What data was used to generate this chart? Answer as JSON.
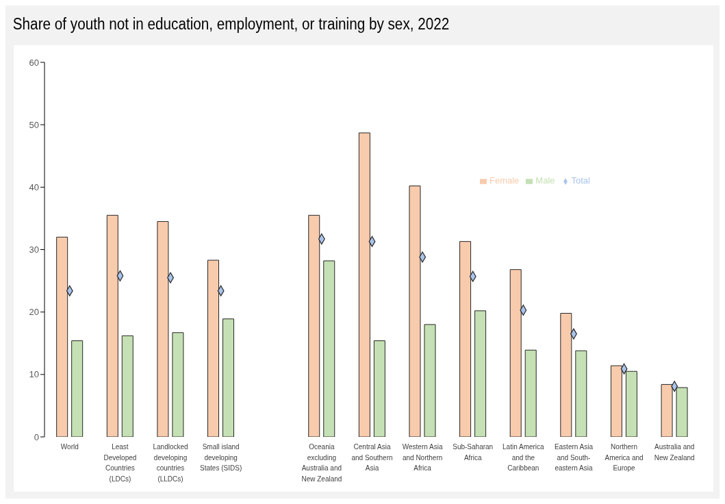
{
  "chart_data": {
    "type": "bar",
    "title": "Share of youth not in education, employment, or training by sex, 2022",
    "categories": [
      "World",
      "Least Developed Countries (LDCs)",
      "Landlocked developing countries (LLDCs)",
      "Small island developing States (SIDS)",
      null,
      "Oceania excluding Australia and New Zealand",
      "Central Asia and Southern Asia",
      "Western Asia and Northern Africa",
      "Sub-Saharan Africa",
      "Latin America and the Caribbean",
      "Eastern Asia and South-eastern Asia",
      "Northern America and Europe",
      "Australia and New Zealand"
    ],
    "series": [
      {
        "name": "Female",
        "color": "#f8cbad",
        "values": [
          32.0,
          35.5,
          34.5,
          28.3,
          null,
          35.5,
          48.7,
          40.2,
          31.3,
          26.8,
          19.8,
          11.4,
          8.4
        ]
      },
      {
        "name": "Male",
        "color": "#c5e0b4",
        "values": [
          15.4,
          16.2,
          16.7,
          18.9,
          null,
          28.2,
          15.4,
          18.0,
          20.2,
          13.9,
          13.8,
          10.5,
          7.9
        ]
      },
      {
        "name": "Total",
        "type": "scatter",
        "marker": "diamond",
        "color": "#a9c4eb",
        "values": [
          23.4,
          25.8,
          25.5,
          23.4,
          null,
          31.7,
          31.3,
          28.8,
          25.7,
          20.3,
          16.5,
          10.9,
          8.1
        ]
      }
    ],
    "ylim": [
      0,
      60
    ],
    "yticks": [
      0,
      10,
      20,
      30,
      40,
      50,
      60
    ],
    "grid": false,
    "legend": "top right"
  }
}
